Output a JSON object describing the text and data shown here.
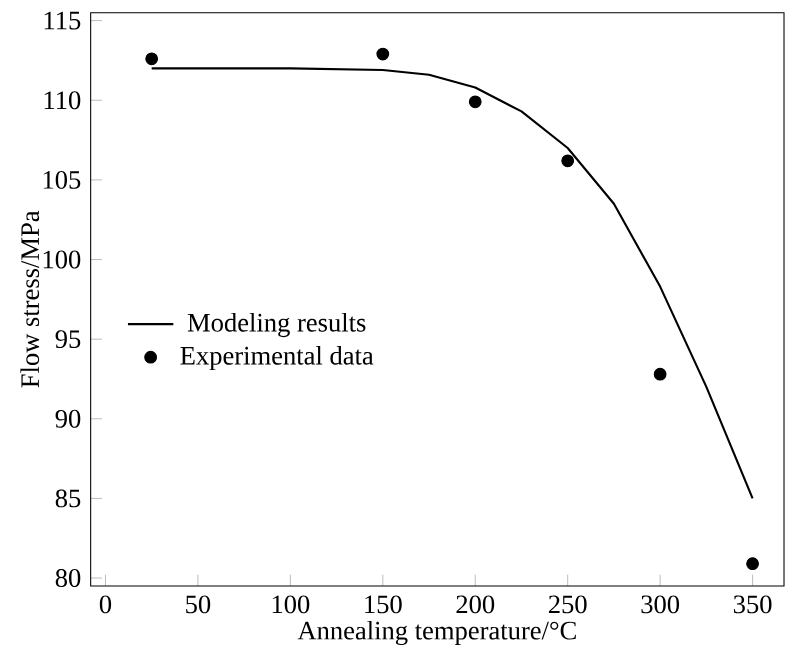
{
  "chart_data": {
    "type": "scatter",
    "xlabel": "Annealing temperature/°C",
    "ylabel": "Flow stress/MPa",
    "xlim": [
      -8,
      367
    ],
    "ylim": [
      79.5,
      115.5
    ],
    "xticks": [
      0,
      50,
      100,
      150,
      200,
      250,
      300,
      350
    ],
    "yticks": [
      80,
      85,
      90,
      95,
      100,
      105,
      110,
      115
    ],
    "grid": false,
    "legend": "bottom left",
    "series": [
      {
        "name": "Modeling results",
        "type": "line",
        "color": "#000000",
        "marker": "none",
        "line_style": "solid",
        "x": [
          25,
          100,
          150,
          175,
          200,
          225,
          250,
          275,
          300,
          325,
          350
        ],
        "values": [
          112,
          112,
          111.9,
          111.6,
          110.8,
          109.3,
          107,
          103.5,
          98.3,
          92,
          85
        ]
      },
      {
        "name": "Experimental data",
        "color": "#000000",
        "marker": "circle",
        "x": [
          25,
          150,
          200,
          250,
          300,
          350
        ],
        "values": [
          112.6,
          112.9,
          109.9,
          106.2,
          92.8,
          80.9
        ]
      }
    ]
  }
}
